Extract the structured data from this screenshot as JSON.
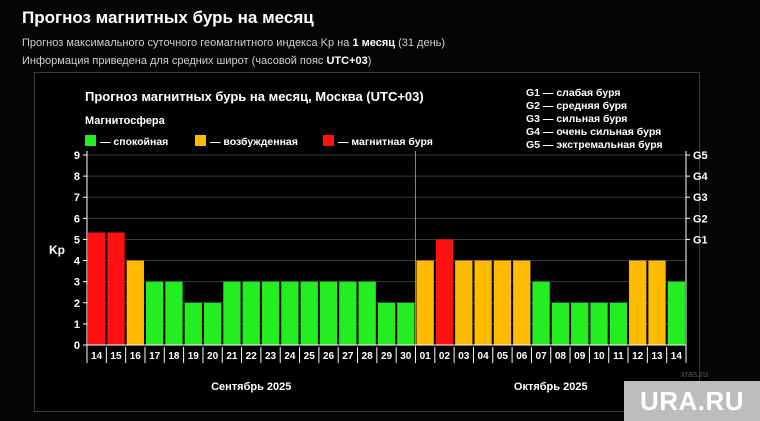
{
  "page": {
    "title": "Прогноз магнитных бурь на месяц",
    "line1_pre": "Прогноз максимального суточного геомагнитного индекса Kp на ",
    "line1_bold": "1 месяц",
    "line1_post": " (31 день)",
    "line2_pre": "Информация приведена для средних широт (часовой пояс ",
    "line2_bold": "UTC+03",
    "line2_post": ")"
  },
  "watermark": {
    "text": "URA.RU",
    "small": "xras.ru"
  },
  "colors": {
    "calm": "#22ee22",
    "excited": "#ffbb00",
    "storm": "#ff1111",
    "grid": "#3a3a3a"
  },
  "chart_data": {
    "type": "bar",
    "title": "Прогноз магнитных бурь на месяц, Москва (UTC+03)",
    "ylabel": "Kp",
    "ylim": [
      0,
      9
    ],
    "yticks": [
      "0",
      "1",
      "2",
      "3",
      "4",
      "5",
      "6",
      "7",
      "8",
      "9"
    ],
    "right_ticks": [
      {
        "label": "G1",
        "value": 5
      },
      {
        "label": "G2",
        "value": 6
      },
      {
        "label": "G3",
        "value": 7
      },
      {
        "label": "G4",
        "value": 8
      },
      {
        "label": "G5",
        "value": 9
      }
    ],
    "legend_title": "Магнитосфера",
    "legend": [
      {
        "key": "calm",
        "label": "— спокойная"
      },
      {
        "key": "excited",
        "label": "— возбужденная"
      },
      {
        "key": "storm",
        "label": "— магнитная буря"
      }
    ],
    "g_scale": [
      "G1 — слабая буря",
      "G2 — средняя буря",
      "G3 — сильная буря",
      "G4 — очень сильная буря",
      "G5 — экстремальная буря"
    ],
    "months": [
      {
        "label": "Сентябрь 2025"
      },
      {
        "label": "Октябрь 2025"
      }
    ],
    "categories": [
      "14",
      "15",
      "16",
      "17",
      "18",
      "19",
      "20",
      "21",
      "22",
      "23",
      "24",
      "25",
      "26",
      "27",
      "28",
      "29",
      "30",
      "01",
      "02",
      "03",
      "04",
      "05",
      "06",
      "07",
      "08",
      "09",
      "10",
      "11",
      "12",
      "13",
      "14"
    ],
    "month_index": [
      0,
      0,
      0,
      0,
      0,
      0,
      0,
      0,
      0,
      0,
      0,
      0,
      0,
      0,
      0,
      0,
      0,
      1,
      1,
      1,
      1,
      1,
      1,
      1,
      1,
      1,
      1,
      1,
      1,
      1,
      1
    ],
    "values": [
      5.33,
      5.33,
      4,
      3,
      3,
      2,
      2,
      3,
      3,
      3,
      3,
      3,
      3,
      3,
      3,
      2,
      2,
      4,
      5,
      4,
      4,
      4,
      4,
      3,
      2,
      2,
      2,
      2,
      4,
      4,
      3
    ],
    "levels": [
      "storm",
      "storm",
      "excited",
      "calm",
      "calm",
      "calm",
      "calm",
      "calm",
      "calm",
      "calm",
      "calm",
      "calm",
      "calm",
      "calm",
      "calm",
      "calm",
      "calm",
      "excited",
      "storm",
      "excited",
      "excited",
      "excited",
      "excited",
      "calm",
      "calm",
      "calm",
      "calm",
      "calm",
      "excited",
      "excited",
      "calm"
    ]
  }
}
